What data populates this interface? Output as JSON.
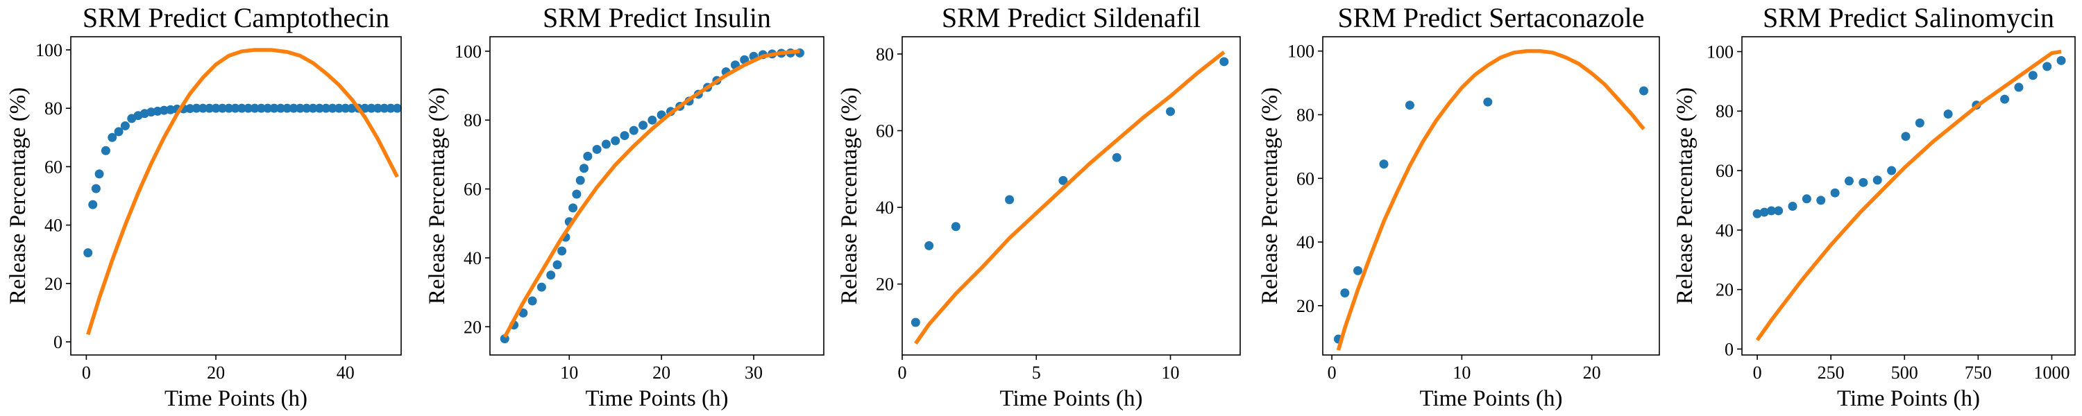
{
  "chart_data": [
    {
      "type": "scatter",
      "title": "SRM Predict Camptothecin",
      "xlabel": "Time Points (h)",
      "ylabel": "Release Percentage (%)",
      "xlim": [
        -2.4,
        48.6
      ],
      "ylim": [
        -4.5,
        104.5
      ],
      "xticks": [
        0,
        20,
        40
      ],
      "yticks": [
        0,
        20,
        40,
        60,
        80,
        100
      ],
      "grid": false,
      "series": [
        {
          "kind": "points",
          "color": "#1f77b4",
          "x": [
            0.25,
            1,
            1.5,
            2,
            3,
            4,
            5,
            6,
            7,
            8,
            9,
            10,
            11,
            12,
            13,
            14,
            15,
            16,
            17,
            18,
            19,
            20,
            21,
            22,
            23,
            24,
            25,
            26,
            27,
            28,
            29,
            30,
            31,
            32,
            33,
            34,
            35,
            36,
            37,
            38,
            39,
            40,
            41,
            42,
            43,
            44,
            45,
            46,
            47,
            48
          ],
          "y": [
            30.5,
            47,
            52.5,
            57.5,
            65.5,
            70,
            72,
            74,
            76.5,
            77.5,
            78.2,
            78.7,
            79,
            79.3,
            79.5,
            79.7,
            79.8,
            79.9,
            80,
            80,
            80,
            80,
            80,
            80,
            80,
            80,
            80,
            80,
            80,
            80,
            80,
            80,
            80,
            80,
            80,
            80,
            80,
            80,
            80,
            80,
            80,
            80,
            80,
            80,
            80,
            80,
            80,
            80,
            80,
            80
          ]
        },
        {
          "kind": "line",
          "color": "#ff7f0e",
          "x": [
            0.25,
            2,
            4,
            6,
            8,
            10,
            12,
            14,
            16,
            18,
            20,
            22,
            24,
            26,
            28.5,
            31,
            33,
            35,
            37,
            39,
            41,
            43,
            45,
            46.5,
            48
          ],
          "y": [
            2.5,
            15,
            28,
            40,
            51,
            61,
            70,
            78,
            85,
            90.5,
            95,
            98,
            99.5,
            100,
            100,
            99.3,
            98,
            95.5,
            92,
            88,
            83,
            77,
            69.5,
            63,
            56.5
          ]
        }
      ]
    },
    {
      "type": "scatter",
      "title": "SRM Predict Insulin",
      "xlabel": "Time Points (h)",
      "ylabel": "Release Percentage (%)",
      "xlim": [
        1.4,
        37.6
      ],
      "ylim": [
        11.8,
        104.2
      ],
      "xticks": [
        10,
        20,
        30
      ],
      "yticks": [
        20,
        40,
        60,
        80,
        100
      ],
      "grid": false,
      "series": [
        {
          "kind": "points",
          "color": "#1f77b4",
          "x": [
            3,
            4,
            5,
            6,
            7,
            8,
            8.7,
            9.2,
            9.6,
            10,
            10.4,
            10.8,
            11.2,
            11.6,
            12,
            13,
            14,
            15,
            16,
            17,
            18,
            19,
            20,
            21,
            22,
            23,
            24,
            25,
            26,
            27,
            28,
            29,
            30,
            31,
            32,
            33,
            34,
            35
          ],
          "y": [
            16.5,
            20.5,
            24,
            27.5,
            31.5,
            35,
            38,
            42,
            46,
            50.5,
            54.5,
            58.5,
            62.5,
            66,
            69.5,
            71.5,
            73,
            74,
            75.5,
            77,
            78.5,
            80,
            81.5,
            82.5,
            84,
            85.5,
            87.5,
            89.5,
            91.5,
            94,
            96,
            97.5,
            98.5,
            99,
            99.2,
            99.4,
            99.5,
            99.5
          ]
        },
        {
          "kind": "line",
          "color": "#ff7f0e",
          "x": [
            3,
            5,
            7,
            9,
            11,
            13,
            15,
            17,
            19,
            21,
            23,
            25,
            27,
            29,
            31,
            33,
            35
          ],
          "y": [
            17,
            27,
            36,
            45,
            53,
            60.5,
            67,
            72.5,
            77.5,
            82,
            86,
            89.5,
            93,
            96,
            98.5,
            99.5,
            100
          ]
        }
      ]
    },
    {
      "type": "scatter",
      "title": "SRM Predict Sildenafil",
      "xlabel": "Time Points (h)",
      "ylabel": "Release Percentage (%)",
      "xlim": [
        0,
        12.6
      ],
      "ylim": [
        1.5,
        84.5
      ],
      "xticks": [
        0,
        5,
        10
      ],
      "yticks": [
        20,
        40,
        60,
        80
      ],
      "grid": false,
      "series": [
        {
          "kind": "points",
          "color": "#1f77b4",
          "x": [
            0.5,
            1,
            2,
            4,
            6,
            8,
            10,
            12
          ],
          "y": [
            10,
            30,
            35,
            42,
            47,
            53,
            65,
            78
          ]
        },
        {
          "kind": "line",
          "color": "#ff7f0e",
          "x": [
            0.5,
            1,
            2,
            3,
            4,
            5,
            6,
            7,
            8,
            9,
            10,
            11,
            12
          ],
          "y": [
            4.5,
            9.5,
            17.5,
            24.5,
            32,
            38.5,
            45,
            51.5,
            57.5,
            63.5,
            69,
            75,
            80.5
          ]
        }
      ]
    },
    {
      "type": "scatter",
      "title": "SRM Predict Sertaconazole",
      "xlabel": "Time Points (h)",
      "ylabel": "Release Percentage (%)",
      "xlim": [
        -0.7,
        25.2
      ],
      "ylim": [
        4.5,
        104.5
      ],
      "xticks": [
        0,
        10,
        20
      ],
      "yticks": [
        20,
        40,
        60,
        80,
        100
      ],
      "grid": false,
      "series": [
        {
          "kind": "points",
          "color": "#1f77b4",
          "x": [
            0.5,
            1,
            2,
            4,
            6,
            12,
            24
          ],
          "y": [
            9.5,
            24,
            31,
            64.5,
            83,
            84,
            87.5
          ]
        },
        {
          "kind": "line",
          "color": "#ff7f0e",
          "x": [
            0.5,
            1,
            2,
            3,
            4,
            5,
            6,
            7,
            8,
            9,
            10,
            11,
            12,
            13,
            14,
            15,
            16,
            17,
            18,
            19,
            20,
            21,
            22,
            23,
            24
          ],
          "y": [
            6,
            13,
            25,
            36,
            46.5,
            55.5,
            64,
            71.5,
            78,
            83.5,
            88.5,
            92.5,
            95.5,
            98,
            99.5,
            100,
            100,
            99.5,
            98,
            96,
            93,
            89.5,
            85,
            80.5,
            75.5
          ]
        }
      ]
    },
    {
      "type": "scatter",
      "title": "SRM Predict Salinomycin",
      "xlabel": "Time Points (h)",
      "ylabel": "Release Percentage (%)",
      "xlim": [
        -52,
        1079
      ],
      "ylim": [
        -2,
        105
      ],
      "xticks": [
        0,
        250,
        500,
        750,
        1000
      ],
      "yticks": [
        0,
        20,
        40,
        60,
        80,
        100
      ],
      "grid": false,
      "series": [
        {
          "kind": "points",
          "color": "#1f77b4",
          "x": [
            0,
            24,
            48,
            72,
            120,
            168,
            216,
            264,
            312,
            360,
            408,
            456,
            504,
            552,
            648,
            744,
            840,
            888,
            936,
            984,
            1032
          ],
          "y": [
            45.5,
            46,
            46.5,
            46.5,
            48,
            50.5,
            50,
            52.5,
            56.5,
            56,
            56.8,
            60,
            71.5,
            76,
            79,
            82,
            84,
            88,
            92,
            95,
            97
          ]
        },
        {
          "kind": "line",
          "color": "#ff7f0e",
          "x": [
            0,
            50,
            100,
            150,
            200,
            250,
            300,
            350,
            400,
            450,
            500,
            550,
            600,
            650,
            700,
            750,
            800,
            850,
            900,
            950,
            1000,
            1032
          ],
          "y": [
            3,
            10,
            16.5,
            23,
            29,
            35,
            40.5,
            46,
            51,
            56,
            61,
            65.5,
            70,
            74,
            78,
            82,
            85.5,
            89,
            92.5,
            96,
            99.5,
            100
          ]
        }
      ]
    }
  ]
}
